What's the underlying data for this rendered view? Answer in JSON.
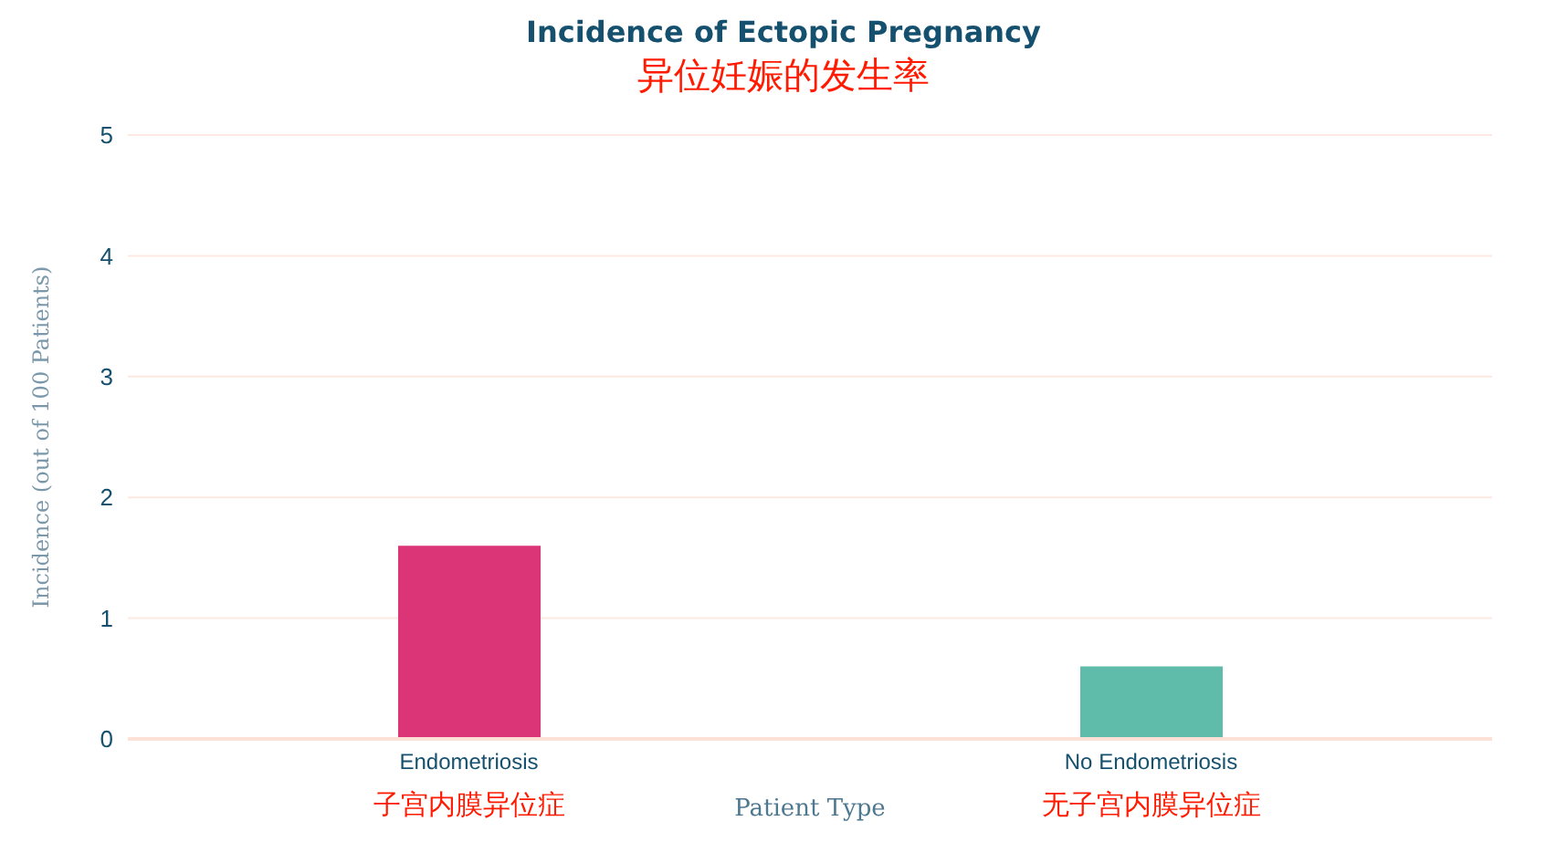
{
  "chart_data": {
    "type": "bar",
    "title": "Incidence of Ectopic Pregnancy",
    "subtitle": "异位妊娠的发生率",
    "xlabel": "Patient Type",
    "ylabel": "Incidence (out of 100 Patients)",
    "categories": [
      "Endometriosis",
      "No Endometriosis"
    ],
    "values": [
      1.6,
      0.6
    ],
    "colors": [
      "#dc3577",
      "#5fbbaa"
    ],
    "ylim": [
      0,
      5
    ],
    "yticks": [
      0,
      1,
      2,
      3,
      4,
      5
    ],
    "grid": "y",
    "annotations": [
      "子宫内膜异位症",
      "无子宫内膜异位症"
    ]
  }
}
